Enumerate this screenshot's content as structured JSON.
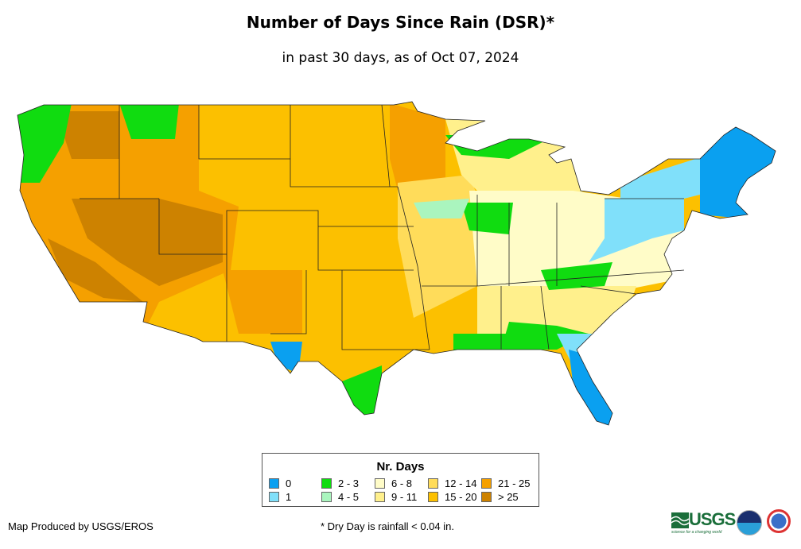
{
  "header": {
    "title": "Number of Days Since Rain (DSR)*",
    "subtitle": "in past 30 days, as of Oct 07, 2024"
  },
  "legend": {
    "title": "Nr. Days",
    "items": [
      {
        "label": "0",
        "color": "#0aa0f0"
      },
      {
        "label": "1",
        "color": "#80e0fa"
      },
      {
        "label": "2 - 3",
        "color": "#10dc10"
      },
      {
        "label": "4 - 5",
        "color": "#aaf5be"
      },
      {
        "label": "6 - 8",
        "color": "#fffcc8"
      },
      {
        "label": "9 - 11",
        "color": "#fff08c"
      },
      {
        "label": "12 - 14",
        "color": "#ffdc5a"
      },
      {
        "label": "15 - 20",
        "color": "#fcc000"
      },
      {
        "label": "21 - 25",
        "color": "#f5a000"
      },
      {
        "label": "> 25",
        "color": "#cd8200"
      }
    ]
  },
  "footer": {
    "credit": "Map Produced by USGS/EROS",
    "note": "* Dry Day is rainfall < 0.04 in."
  },
  "logos": {
    "usgs": "USGS",
    "usgs_tagline": "science for a changing world",
    "noaa": "NOAA",
    "nws": "National Weather Service"
  }
}
